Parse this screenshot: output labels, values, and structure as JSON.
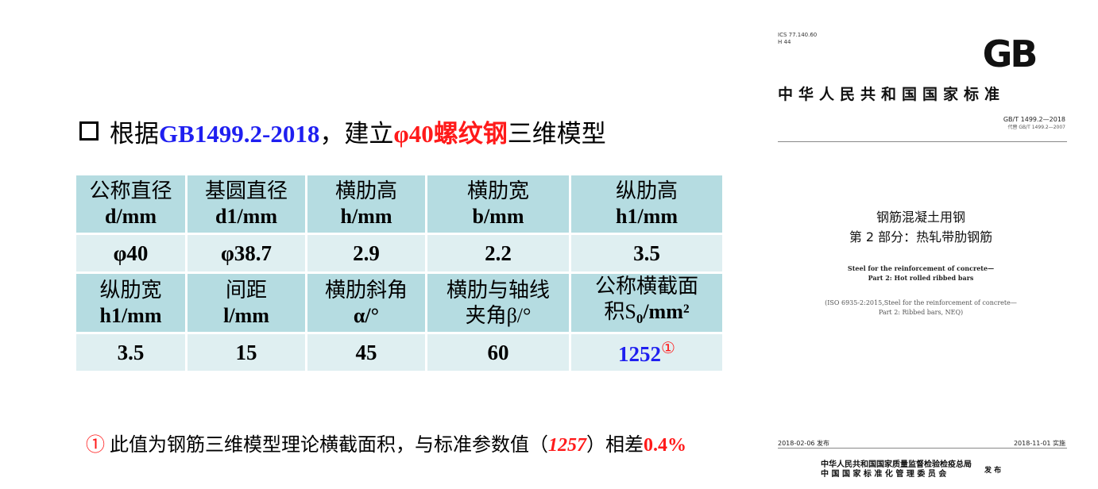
{
  "title": {
    "prefix": "根据",
    "standard": "GB1499.2-2018",
    "middle": "，建立",
    "rebar": "φ40螺纹钢",
    "suffix": "三维模型"
  },
  "table": {
    "rows": [
      {
        "type": "header",
        "cells": [
          {
            "cn": "公称直径",
            "unit": "d/mm"
          },
          {
            "cn": "基圆直径",
            "unit": "d1/mm"
          },
          {
            "cn": "横肋高",
            "unit": "h/mm"
          },
          {
            "cn": "横肋宽",
            "unit": "b/mm"
          },
          {
            "cn": "纵肋高",
            "unit": "h1/mm"
          }
        ]
      },
      {
        "type": "values",
        "cells": [
          "φ40",
          "φ38.7",
          "2.9",
          "2.2",
          "3.5"
        ]
      },
      {
        "type": "header",
        "cells": [
          {
            "cn": "纵肋宽",
            "unit": "h1/mm"
          },
          {
            "cn": "间距",
            "unit": "l/mm"
          },
          {
            "cn": "横肋斜角",
            "unit": "α/°"
          },
          {
            "cn": "横肋与轴线",
            "unit": "夹角β/°"
          },
          {
            "cn": "公称横截面",
            "unit_pre": "积S",
            "unit_sub": "0",
            "unit_post": "/mm²"
          }
        ]
      },
      {
        "type": "values",
        "cells": [
          "3.5",
          "15",
          "45",
          "60"
        ],
        "last": {
          "value": "1252",
          "mark": "①"
        }
      }
    ]
  },
  "note": {
    "mark": "①",
    "text1": " 此值为钢筋三维模型理论横截面积，与标准参数值（",
    "std_value": "1257",
    "text2": "）相差",
    "diff": "0.4%"
  },
  "doc": {
    "ics": "ICS 77.140.60",
    "class_code": "H 44",
    "logo": "GB",
    "country": "中华人民共和国国家标准",
    "std_no": "GB/T 1499.2—2018",
    "replaces": "代替 GB/T 1499.2—2007",
    "cn_title_1": "钢筋混凝土用钢",
    "cn_title_2": "第 2 部分：热轧带肋钢筋",
    "en_title_1": "Steel for the reinforcement of concrete—",
    "en_title_2": "Part 2: Hot rolled ribbed bars",
    "iso_1": "(ISO 6935-2:2015,Steel for the reinforcement of concrete—",
    "iso_2": "Part 2: Ribbed bars, NEQ)",
    "published": "2018-02-06 发布",
    "implemented": "2018-11-01 实施",
    "issuer_1": "中华人民共和国国家质量监督检验检疫总局",
    "issuer_2": "中 国 国 家 标 准 化 管 理 委 员 会",
    "issue_label": "发 布"
  }
}
